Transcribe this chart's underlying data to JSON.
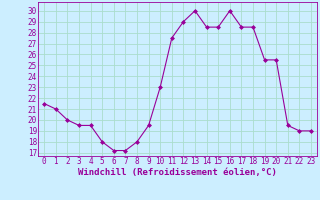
{
  "x": [
    0,
    1,
    2,
    3,
    4,
    5,
    6,
    7,
    8,
    9,
    10,
    11,
    12,
    13,
    14,
    15,
    16,
    17,
    18,
    19,
    20,
    21,
    22,
    23
  ],
  "y": [
    21.5,
    21.0,
    20.0,
    19.5,
    19.5,
    18.0,
    17.2,
    17.2,
    18.0,
    19.5,
    23.0,
    27.5,
    29.0,
    30.0,
    28.5,
    28.5,
    30.0,
    28.5,
    28.5,
    25.5,
    25.5,
    19.5,
    19.0,
    19.0
  ],
  "line_color": "#990099",
  "marker": "D",
  "marker_size": 2,
  "bg_color": "#cceeff",
  "grid_color": "#aaddcc",
  "xlabel": "Windchill (Refroidissement éolien,°C)",
  "ylabel_ticks": [
    17,
    18,
    19,
    20,
    21,
    22,
    23,
    24,
    25,
    26,
    27,
    28,
    29,
    30
  ],
  "xlabel_ticks": [
    0,
    1,
    2,
    3,
    4,
    5,
    6,
    7,
    8,
    9,
    10,
    11,
    12,
    13,
    14,
    15,
    16,
    17,
    18,
    19,
    20,
    21,
    22,
    23
  ],
  "ylim": [
    16.7,
    30.8
  ],
  "xlim": [
    -0.5,
    23.5
  ],
  "label_fontsize": 6.5,
  "tick_fontsize": 5.5
}
